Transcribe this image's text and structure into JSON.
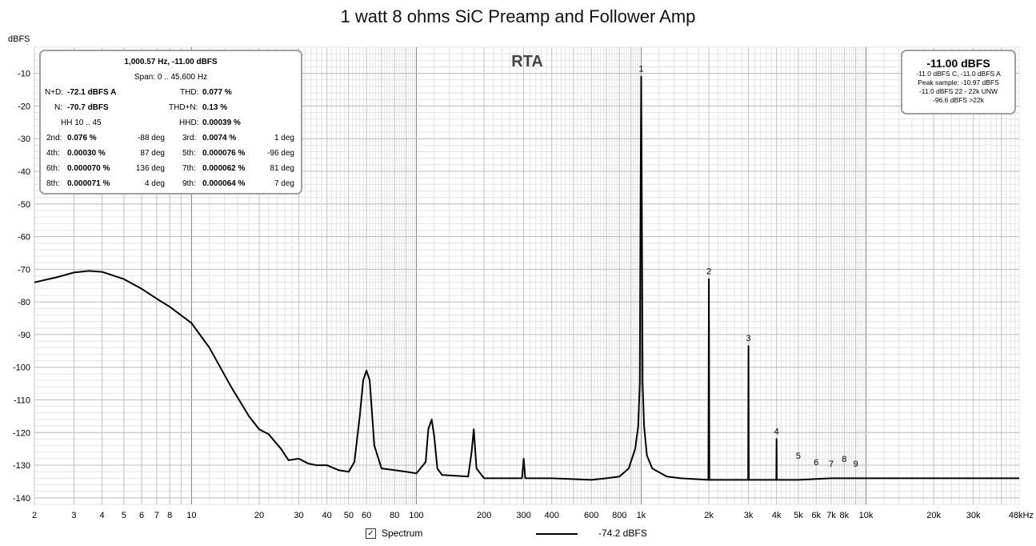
{
  "title": "1 watt 8 ohms SiC Preamp and Follower Amp",
  "chart_data": {
    "type": "line",
    "title": "1 watt 8 ohms SiC Preamp and Follower Amp",
    "watermark": "RTA",
    "ylabel": "dBFS",
    "xlabel": "Hz",
    "x_scale": "log",
    "xlim": [
      2,
      48000
    ],
    "ylim": [
      -142,
      -2
    ],
    "grid": true,
    "x_ticks": [
      {
        "v": 2,
        "t": "2"
      },
      {
        "v": 3,
        "t": "3"
      },
      {
        "v": 4,
        "t": "4"
      },
      {
        "v": 5,
        "t": "5"
      },
      {
        "v": 6,
        "t": "6"
      },
      {
        "v": 7,
        "t": "7"
      },
      {
        "v": 8,
        "t": "8"
      },
      {
        "v": 10,
        "t": "10"
      },
      {
        "v": 20,
        "t": "20"
      },
      {
        "v": 30,
        "t": "30"
      },
      {
        "v": 40,
        "t": "40"
      },
      {
        "v": 50,
        "t": "50"
      },
      {
        "v": 60,
        "t": "60"
      },
      {
        "v": 80,
        "t": "80"
      },
      {
        "v": 100,
        "t": "100"
      },
      {
        "v": 200,
        "t": "200"
      },
      {
        "v": 300,
        "t": "300"
      },
      {
        "v": 400,
        "t": "400"
      },
      {
        "v": 600,
        "t": "600"
      },
      {
        "v": 800,
        "t": "800"
      },
      {
        "v": 1000,
        "t": "1k"
      },
      {
        "v": 2000,
        "t": "2k"
      },
      {
        "v": 3000,
        "t": "3k"
      },
      {
        "v": 4000,
        "t": "4k"
      },
      {
        "v": 5000,
        "t": "5k"
      },
      {
        "v": 6000,
        "t": "6k"
      },
      {
        "v": 7000,
        "t": "7k"
      },
      {
        "v": 8000,
        "t": "8k"
      },
      {
        "v": 10000,
        "t": "10k"
      },
      {
        "v": 20000,
        "t": "20k"
      },
      {
        "v": 30000,
        "t": "30k"
      },
      {
        "v": 48000,
        "t": "48kHz"
      }
    ],
    "y_ticks": [
      -10,
      -20,
      -30,
      -40,
      -50,
      -60,
      -70,
      -80,
      -90,
      -100,
      -110,
      -120,
      -130,
      -140
    ],
    "series": [
      {
        "name": "Spectrum",
        "color": "#000000",
        "legend_value": "-74.2 dBFS",
        "x": [
          2,
          2.5,
          3,
          3.5,
          4,
          5,
          6,
          7,
          8,
          10,
          12,
          15,
          18,
          20,
          22,
          25,
          27,
          30,
          33,
          36,
          40,
          45,
          50,
          53,
          56,
          58,
          60,
          62,
          65,
          70,
          80,
          90,
          100,
          110,
          113,
          117,
          120,
          124,
          130,
          170,
          176,
          180,
          185,
          200,
          295,
          300,
          305,
          400,
          600,
          700,
          800,
          880,
          940,
          970,
          985,
          995,
          1000,
          1005,
          1015,
          1030,
          1060,
          1120,
          1300,
          1500,
          1990,
          2000,
          2010,
          2990,
          3000,
          3010,
          3990,
          4000,
          4010,
          5000,
          7000,
          10000,
          20000,
          48000
        ],
        "y": [
          -74,
          -72.5,
          -71,
          -70.5,
          -70.8,
          -73,
          -76,
          -79,
          -81.5,
          -86.5,
          -94,
          -106,
          -115,
          -119,
          -120.5,
          -125,
          -128.5,
          -128,
          -129.5,
          -130,
          -130,
          -131.5,
          -132,
          -129,
          -115,
          -104,
          -101,
          -104,
          -124,
          -131,
          -131.5,
          -132,
          -132.5,
          -129,
          -119,
          -116,
          -121,
          -131,
          -133,
          -133.5,
          -126,
          -119,
          -131,
          -134,
          -134,
          -128,
          -134,
          -134,
          -134.5,
          -134,
          -133.5,
          -131,
          -125,
          -118,
          -105,
          -40,
          -11,
          -40,
          -105,
          -118,
          -127,
          -131,
          -133.5,
          -134,
          -134.5,
          -73,
          -134.5,
          -134.5,
          -93.5,
          -134.5,
          -134.5,
          -122,
          -134.5,
          -134.5,
          -134,
          -134,
          -134,
          -134
        ]
      }
    ],
    "harmonic_markers": [
      {
        "label": "1",
        "x": 1000,
        "y": -11
      },
      {
        "label": "2",
        "x": 2000,
        "y": -73
      },
      {
        "label": "3",
        "x": 3000,
        "y": -93.5
      },
      {
        "label": "4",
        "x": 4000,
        "y": -122
      },
      {
        "label": "5",
        "x": 5000,
        "y": -129.5
      },
      {
        "label": "6",
        "x": 6000,
        "y": -131.5
      },
      {
        "label": "7",
        "x": 7000,
        "y": -132
      },
      {
        "label": "8",
        "x": 8000,
        "y": -130.5
      },
      {
        "label": "9",
        "x": 9000,
        "y": -132
      }
    ]
  },
  "stats": {
    "header": "1,000.57 Hz, -11.00 dBFS",
    "span": "Span: 0 .. 45,600 Hz",
    "nd_label": "N+D:",
    "nd_value": "-72.1 dBFS A",
    "thd_label": "THD:",
    "thd_value": "0.077 %",
    "n_label": "N:",
    "n_value": "-70.7 dBFS",
    "thdn_label": "THD+N:",
    "thdn_value": "0.13 %",
    "hh_label": "HH 10 .. 45",
    "hhd_label": "HHD:",
    "hhd_value": "0.00039 %",
    "harmonics": [
      {
        "label": "2nd:",
        "value": "0.076 %",
        "phase": "-88 deg",
        "label2": "3rd:",
        "value2": "0.0074 %",
        "phase2": "1 deg"
      },
      {
        "label": "4th:",
        "value": "0.00030 %",
        "phase": "87 deg",
        "label2": "5th:",
        "value2": "0.000076 %",
        "phase2": "-96 deg"
      },
      {
        "label": "6th:",
        "value": "0.000070 %",
        "phase": "136 deg",
        "label2": "7th:",
        "value2": "0.000062 %",
        "phase2": "81 deg"
      },
      {
        "label": "8th:",
        "value": "0.000071 %",
        "phase": "4 deg",
        "label2": "9th:",
        "value2": "0.000064 %",
        "phase2": "7 deg"
      }
    ]
  },
  "level": {
    "big": "-11.00 dBFS",
    "line1": "-11.0 dBFS C, -11.0 dBFS A",
    "line2": "Peak sample: -10.97 dBFS",
    "line3": "-11.0 dBFS 22 - 22k UNW",
    "line4": "-96.6 dBFS >22k"
  },
  "legend": {
    "checkbox_mark": "✓",
    "label": "Spectrum",
    "value": "-74.2 dBFS"
  }
}
